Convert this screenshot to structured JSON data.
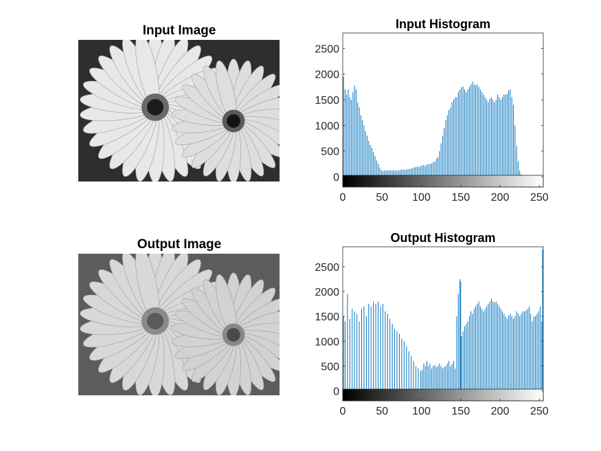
{
  "figure": {
    "input_image_title": "Input Image",
    "output_image_title": "Output Image"
  },
  "colors": {
    "bar": "#0072BD",
    "axis": "#262626",
    "tick_text": "#262626",
    "photo_dark": "#3a3a3a"
  },
  "icons": {
    "input_image": "gerbera-daisy-photo-grayscale",
    "output_image": "gerbera-daisy-photo-grayscale-equalized"
  },
  "chart_data": [
    {
      "type": "bar",
      "title": "Input Histogram",
      "xlabel": "",
      "ylabel": "",
      "xlim": [
        0,
        255
      ],
      "ylim": [
        -200,
        2800
      ],
      "xticks": [
        0,
        50,
        100,
        150,
        200,
        250
      ],
      "yticks": [
        0,
        500,
        1000,
        1500,
        2000,
        2500
      ],
      "colorbar": "grayscale-gradient",
      "grid": false,
      "bar_width": 0.8,
      "x": [
        1,
        3,
        5,
        7,
        9,
        11,
        13,
        15,
        17,
        19,
        21,
        23,
        25,
        27,
        29,
        31,
        33,
        35,
        37,
        39,
        41,
        43,
        45,
        47,
        49,
        51,
        53,
        55,
        57,
        59,
        61,
        63,
        65,
        67,
        69,
        71,
        73,
        75,
        77,
        79,
        81,
        83,
        85,
        87,
        89,
        91,
        93,
        95,
        97,
        99,
        101,
        103,
        105,
        107,
        109,
        111,
        113,
        115,
        117,
        119,
        121,
        123,
        125,
        127,
        129,
        131,
        133,
        135,
        137,
        139,
        141,
        143,
        145,
        147,
        149,
        151,
        153,
        155,
        157,
        159,
        161,
        163,
        165,
        167,
        169,
        171,
        173,
        175,
        177,
        179,
        181,
        183,
        185,
        187,
        189,
        191,
        193,
        195,
        197,
        199,
        201,
        203,
        205,
        207,
        209,
        211,
        213,
        215,
        217,
        219,
        221,
        223,
        225,
        227,
        229,
        231,
        233,
        235,
        237,
        239,
        241,
        243,
        245,
        247,
        249,
        251,
        253
      ],
      "values": [
        1950,
        1700,
        1600,
        1700,
        1550,
        1500,
        1650,
        1780,
        1700,
        1450,
        1350,
        1200,
        1100,
        1000,
        880,
        800,
        700,
        620,
        560,
        480,
        400,
        320,
        250,
        180,
        130,
        110,
        120,
        120,
        130,
        120,
        125,
        120,
        130,
        120,
        120,
        125,
        130,
        140,
        140,
        130,
        145,
        150,
        150,
        160,
        170,
        180,
        190,
        200,
        185,
        210,
        220,
        230,
        210,
        240,
        240,
        250,
        260,
        280,
        300,
        350,
        380,
        500,
        650,
        800,
        950,
        1100,
        1200,
        1300,
        1350,
        1450,
        1500,
        1550,
        1550,
        1650,
        1700,
        1750,
        1750,
        1700,
        1650,
        1700,
        1750,
        1800,
        1850,
        1800,
        1780,
        1800,
        1750,
        1700,
        1650,
        1600,
        1550,
        1500,
        1450,
        1520,
        1550,
        1500,
        1450,
        1500,
        1600,
        1550,
        1500,
        1550,
        1600,
        1600,
        1620,
        1680,
        1700,
        1550,
        1400,
        1000,
        600,
        300,
        120,
        50,
        20,
        10,
        5,
        5,
        5,
        5,
        5,
        5,
        5,
        5,
        5,
        5,
        5
      ]
    },
    {
      "type": "bar",
      "title": "Output Histogram",
      "xlabel": "",
      "ylabel": "",
      "xlim": [
        0,
        255
      ],
      "ylim": [
        -200,
        2900
      ],
      "xticks": [
        0,
        50,
        100,
        150,
        200,
        250
      ],
      "yticks": [
        0,
        500,
        1000,
        1500,
        2000,
        2500
      ],
      "colorbar": "grayscale-gradient",
      "grid": false,
      "bar_width": 0.8,
      "x": [
        1,
        3,
        6,
        9,
        12,
        15,
        18,
        21,
        24,
        27,
        30,
        33,
        36,
        39,
        42,
        45,
        48,
        51,
        54,
        57,
        60,
        63,
        66,
        69,
        72,
        75,
        78,
        81,
        84,
        87,
        90,
        93,
        96,
        99,
        101,
        103,
        105,
        107,
        109,
        111,
        113,
        115,
        117,
        119,
        121,
        123,
        125,
        127,
        129,
        131,
        133,
        135,
        137,
        139,
        141,
        143,
        145,
        147,
        149,
        150,
        151,
        153,
        155,
        157,
        159,
        161,
        163,
        165,
        167,
        169,
        171,
        173,
        175,
        177,
        179,
        181,
        183,
        185,
        187,
        189,
        191,
        193,
        195,
        197,
        199,
        201,
        203,
        205,
        207,
        209,
        211,
        213,
        215,
        217,
        219,
        221,
        223,
        225,
        227,
        229,
        231,
        233,
        235,
        237,
        239,
        241,
        243,
        245,
        247,
        249,
        251,
        253,
        254
      ],
      "values": [
        1500,
        1400,
        1950,
        1450,
        1650,
        1600,
        1550,
        1400,
        1650,
        1700,
        1500,
        1750,
        1700,
        1800,
        1750,
        1800,
        1700,
        1750,
        1600,
        1550,
        1450,
        1350,
        1250,
        1200,
        1150,
        1050,
        1000,
        900,
        800,
        700,
        600,
        500,
        450,
        400,
        420,
        550,
        500,
        600,
        500,
        550,
        450,
        500,
        520,
        480,
        500,
        550,
        500,
        450,
        480,
        500,
        550,
        600,
        500,
        550,
        600,
        450,
        1500,
        1950,
        2250,
        2200,
        1100,
        1200,
        1300,
        1350,
        1400,
        1500,
        1600,
        1550,
        1650,
        1700,
        1750,
        1800,
        1700,
        1650,
        1600,
        1650,
        1700,
        1750,
        1800,
        1850,
        1800,
        1780,
        1800,
        1750,
        1700,
        1650,
        1600,
        1550,
        1500,
        1450,
        1520,
        1550,
        1500,
        1450,
        1500,
        1600,
        1550,
        1500,
        1550,
        1600,
        1600,
        1620,
        1650,
        1700,
        1550,
        1400,
        1500,
        1500,
        1550,
        1600,
        1700,
        1400,
        2850
      ]
    }
  ]
}
